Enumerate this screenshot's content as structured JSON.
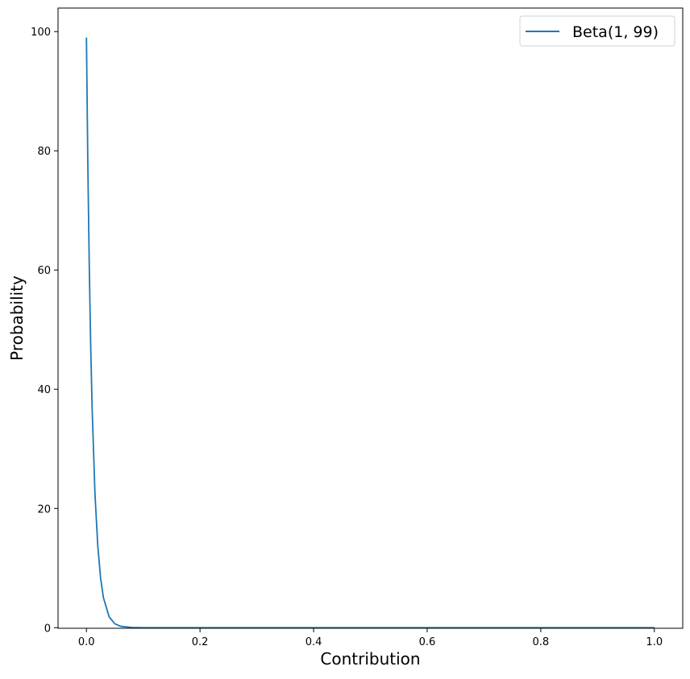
{
  "chart_data": {
    "type": "line",
    "title": "",
    "xlabel": "Contribution",
    "ylabel": "Probability",
    "xlim": [
      -0.05,
      1.05
    ],
    "ylim": [
      -0.1,
      103.95
    ],
    "xticks": [
      0.0,
      0.2,
      0.4,
      0.6,
      0.8,
      1.0
    ],
    "xtick_labels": [
      "0.0",
      "0.2",
      "0.4",
      "0.6",
      "0.8",
      "1.0"
    ],
    "yticks": [
      0,
      20,
      40,
      60,
      80,
      100
    ],
    "ytick_labels": [
      "0",
      "20",
      "40",
      "60",
      "80",
      "100"
    ],
    "grid": false,
    "legend_position": "top-right",
    "series": [
      {
        "name": "Beta(1, 99)",
        "color": "#1f77b4",
        "x": [
          0,
          0.0025,
          0.005,
          0.0075,
          0.01,
          0.015,
          0.02,
          0.025,
          0.03,
          0.04,
          0.05,
          0.06,
          0.08,
          0.1,
          0.2,
          0.4,
          0.6,
          0.8,
          1.0
        ],
        "y": [
          99,
          77.47,
          60.58,
          47.34,
          36.98,
          22.51,
          13.67,
          8.28,
          5.0,
          1.81,
          0.65,
          0.23,
          0.028,
          0.0032,
          0,
          0,
          0,
          0,
          0
        ]
      }
    ]
  }
}
